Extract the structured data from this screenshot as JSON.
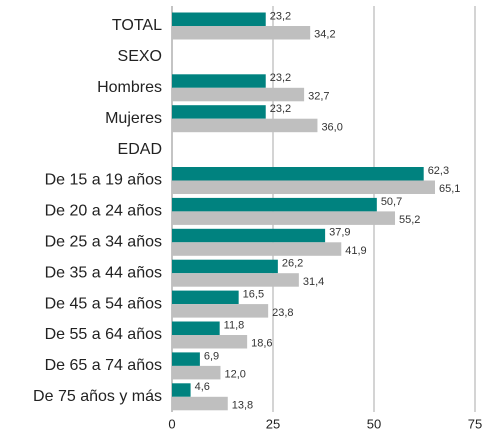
{
  "chart_data": {
    "type": "hbar",
    "categories": [
      "TOTAL",
      "SEXO",
      "Hombres",
      "Mujeres",
      "EDAD",
      "De 15 a 19 años",
      "De 20 a 24 años",
      "De 25 a 34 años",
      "De 35 a 44 años",
      "De 45 a 54 años",
      "De 55 a 64 años",
      "De 65 a 74 años",
      "De 75 años y más"
    ],
    "series": [
      {
        "color": "#00827f",
        "values": [
          23.2,
          null,
          23.2,
          23.2,
          null,
          62.3,
          50.7,
          37.9,
          26.2,
          16.5,
          11.8,
          6.9,
          4.6
        ],
        "value_labels": [
          "23,2",
          null,
          "23,2",
          "23,2",
          null,
          "62,3",
          "50,7",
          "37,9",
          "26,2",
          "16,5",
          "11,8",
          "6,9",
          "4,6"
        ]
      },
      {
        "color": "#bfbfbf",
        "values": [
          34.2,
          null,
          32.7,
          36.0,
          null,
          65.1,
          55.2,
          41.9,
          31.4,
          23.8,
          18.6,
          12.0,
          13.8
        ],
        "value_labels": [
          "34,2",
          null,
          "32,7",
          "36,0",
          null,
          "65,1",
          "55,2",
          "41,9",
          "31,4",
          "23,8",
          "18,6",
          "12,0",
          "13,8"
        ]
      }
    ],
    "xlim": [
      0,
      75
    ],
    "xticks": [
      0,
      25,
      50,
      75
    ],
    "grid": true
  }
}
